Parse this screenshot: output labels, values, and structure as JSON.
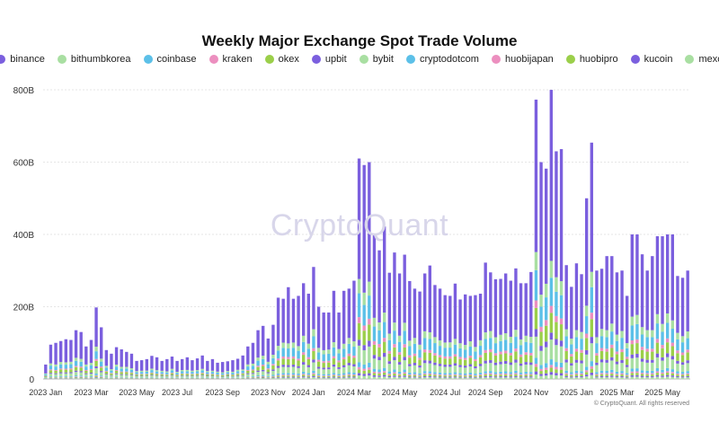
{
  "chart_data": {
    "type": "bar",
    "stacked": true,
    "title": "Weekly Major Exchange Spot Trade Volume",
    "xlabel": "",
    "ylabel": "",
    "ylim": [
      0,
      820
    ],
    "yticks": [
      0,
      200,
      400,
      600,
      800
    ],
    "ytick_labels": [
      "0",
      "200B",
      "400B",
      "600B",
      "800B"
    ],
    "xtick_labels": [
      "2023 Jan",
      "2023 Mar",
      "2023 May",
      "2023 Jul",
      "2023 Sep",
      "2023 Nov",
      "2024 Jan",
      "2024 Mar",
      "2024 May",
      "2024 Jul",
      "2024 Sep",
      "2024 Nov",
      "2025 Jan",
      "2025 Mar",
      "2025 May"
    ],
    "xtick_week_index": [
      0,
      9,
      18,
      26,
      35,
      44,
      52,
      61,
      70,
      79,
      87,
      96,
      105,
      113,
      122
    ],
    "legend_position": "top-center",
    "grid": true,
    "series_names": [
      "binance",
      "bithumbkorea",
      "coinbase",
      "kraken",
      "okex",
      "upbit",
      "bybit",
      "cryptodotcom",
      "huobijapan",
      "huobipro",
      "kucoin",
      "mexc"
    ],
    "series_colors": [
      "#7b5fde",
      "#a9dfa2",
      "#5cc0e8",
      "#ec8fbf",
      "#9bcf4a",
      "#7b5fde",
      "#a9dfa2",
      "#5cc0e8",
      "#ec8fbf",
      "#9bcf4a",
      "#7b5fde",
      "#a9dfa2"
    ],
    "weeks": [
      "2023-01-02",
      "2023-01-09",
      "2023-01-16",
      "2023-01-23",
      "2023-01-30",
      "2023-02-06",
      "2023-02-13",
      "2023-02-20",
      "2023-02-27",
      "2023-03-06",
      "2023-03-13",
      "2023-03-20",
      "2023-03-27",
      "2023-04-03",
      "2023-04-10",
      "2023-04-17",
      "2023-04-24",
      "2023-05-01",
      "2023-05-08",
      "2023-05-15",
      "2023-05-22",
      "2023-05-29",
      "2023-06-05",
      "2023-06-12",
      "2023-06-19",
      "2023-06-26",
      "2023-07-03",
      "2023-07-10",
      "2023-07-17",
      "2023-07-24",
      "2023-07-31",
      "2023-08-07",
      "2023-08-14",
      "2023-08-21",
      "2023-08-28",
      "2023-09-04",
      "2023-09-11",
      "2023-09-18",
      "2023-09-25",
      "2023-10-02",
      "2023-10-09",
      "2023-10-16",
      "2023-10-23",
      "2023-10-30",
      "2023-11-06",
      "2023-11-13",
      "2023-11-20",
      "2023-11-27",
      "2023-12-04",
      "2023-12-11",
      "2023-12-18",
      "2023-12-25",
      "2024-01-01",
      "2024-01-08",
      "2024-01-15",
      "2024-01-22",
      "2024-01-29",
      "2024-02-05",
      "2024-02-12",
      "2024-02-19",
      "2024-02-26",
      "2024-03-04",
      "2024-03-11",
      "2024-03-18",
      "2024-03-25",
      "2024-04-01",
      "2024-04-08",
      "2024-04-15",
      "2024-04-22",
      "2024-04-29",
      "2024-05-06",
      "2024-05-13",
      "2024-05-20",
      "2024-05-27",
      "2024-06-03",
      "2024-06-10",
      "2024-06-17",
      "2024-06-24",
      "2024-07-01",
      "2024-07-08",
      "2024-07-15",
      "2024-07-22",
      "2024-07-29",
      "2024-08-05",
      "2024-08-12",
      "2024-08-19",
      "2024-08-26",
      "2024-09-02",
      "2024-09-09",
      "2024-09-16",
      "2024-09-23",
      "2024-09-30",
      "2024-10-07",
      "2024-10-14",
      "2024-10-21",
      "2024-10-28",
      "2024-11-04",
      "2024-11-11",
      "2024-11-18",
      "2024-11-25",
      "2024-12-02",
      "2024-12-09",
      "2024-12-16",
      "2024-12-23",
      "2024-12-30",
      "2025-01-06",
      "2025-01-13",
      "2025-01-20",
      "2025-01-27",
      "2025-02-03",
      "2025-02-10",
      "2025-02-17",
      "2025-02-24",
      "2025-03-03",
      "2025-03-10",
      "2025-03-17",
      "2025-03-24",
      "2025-03-31",
      "2025-04-07",
      "2025-04-14",
      "2025-04-21",
      "2025-04-28",
      "2025-05-05",
      "2025-05-12",
      "2025-05-19",
      "2025-05-26",
      "2025-06-02",
      "2025-06-09"
    ],
    "totals": [
      40,
      95,
      100,
      105,
      110,
      108,
      135,
      130,
      90,
      108,
      198,
      143,
      80,
      70,
      88,
      82,
      75,
      70,
      50,
      52,
      55,
      64,
      60,
      50,
      55,
      62,
      50,
      55,
      60,
      52,
      57,
      65,
      50,
      55,
      45,
      47,
      49,
      52,
      56,
      65,
      90,
      100,
      135,
      147,
      112,
      150,
      225,
      222,
      254,
      222,
      230,
      265,
      236,
      310,
      200,
      184,
      184,
      244,
      184,
      244,
      250,
      272,
      610,
      592,
      600,
      402,
      356,
      422,
      294,
      350,
      292,
      344,
      271,
      250,
      242,
      292,
      314,
      260,
      250,
      232,
      230,
      264,
      220,
      234,
      230,
      232,
      236,
      322,
      295,
      276,
      277,
      292,
      272,
      306,
      265,
      265,
      296,
      773,
      600,
      582,
      800,
      630,
      636,
      315,
      255,
      320,
      290,
      500,
      654,
      300,
      305,
      340,
      340,
      295,
      300,
      230,
      400,
      400,
      345,
      300,
      340,
      395,
      395,
      400,
      400,
      285,
      280,
      300
    ],
    "plotted_series_share": {
      "binance": 0.58,
      "bithumbkorea": 0.06,
      "coinbase": 0.1,
      "kraken": 0.025,
      "okex": 0.07,
      "upbit": 0.025,
      "bybit": 0.07,
      "cryptodotcom": 0.02,
      "huobijapan": 0.01,
      "huobipro": 0.015,
      "kucoin": 0.01,
      "mexc": 0.015
    }
  },
  "watermark": "CryptoQuant",
  "copyright": "© CryptoQuant. All rights reserved"
}
